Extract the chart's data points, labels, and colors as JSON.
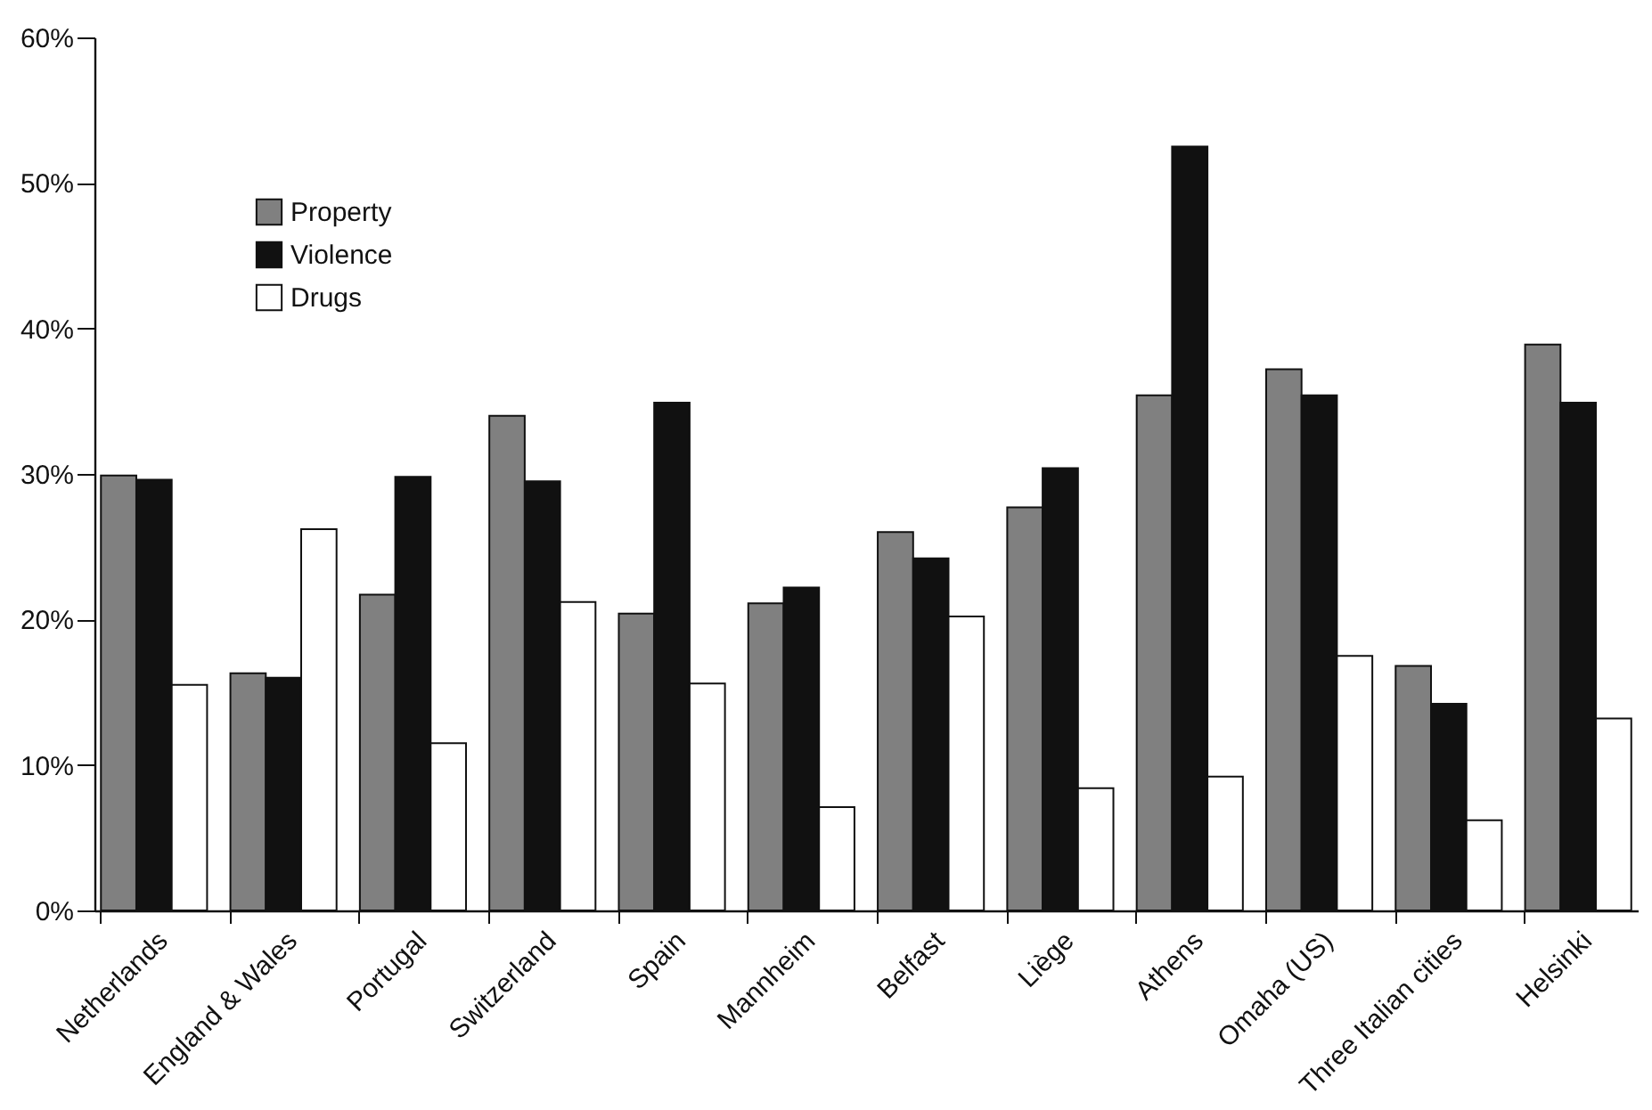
{
  "chart_data": {
    "type": "bar",
    "categories": [
      "Netherlands",
      "England & Wales",
      "Portugal",
      "Switzerland",
      "Spain",
      "Mannheim",
      "Belfast",
      "Liège",
      "Athens",
      "Omaha (US)",
      "Three Italian cities",
      "Helsinki"
    ],
    "series": [
      {
        "name": "Property",
        "color": "#808080",
        "values": [
          29.9,
          16.3,
          21.7,
          34.0,
          20.4,
          21.1,
          26.0,
          27.7,
          35.4,
          37.2,
          16.8,
          38.9
        ]
      },
      {
        "name": "Violence",
        "color": "#111111",
        "values": [
          29.6,
          16.0,
          29.8,
          29.5,
          34.9,
          22.2,
          24.2,
          30.4,
          52.5,
          35.4,
          14.2,
          34.9
        ]
      },
      {
        "name": "Drugs",
        "color": "#ffffff",
        "values": [
          15.5,
          26.2,
          11.5,
          21.2,
          15.6,
          7.1,
          20.2,
          8.4,
          9.2,
          17.5,
          6.2,
          13.2
        ]
      }
    ],
    "ylim": [
      0,
      60
    ],
    "yticks": [
      {
        "value": 0,
        "label": "0%"
      },
      {
        "value": 10,
        "label": "10%"
      },
      {
        "value": 20,
        "label": "20%"
      },
      {
        "value": 30,
        "label": "30%"
      },
      {
        "value": 40,
        "label": "40%"
      },
      {
        "value": 50,
        "label": "50%"
      },
      {
        "value": 60,
        "label": "60%"
      }
    ],
    "legend": "top left",
    "grid": false
  }
}
